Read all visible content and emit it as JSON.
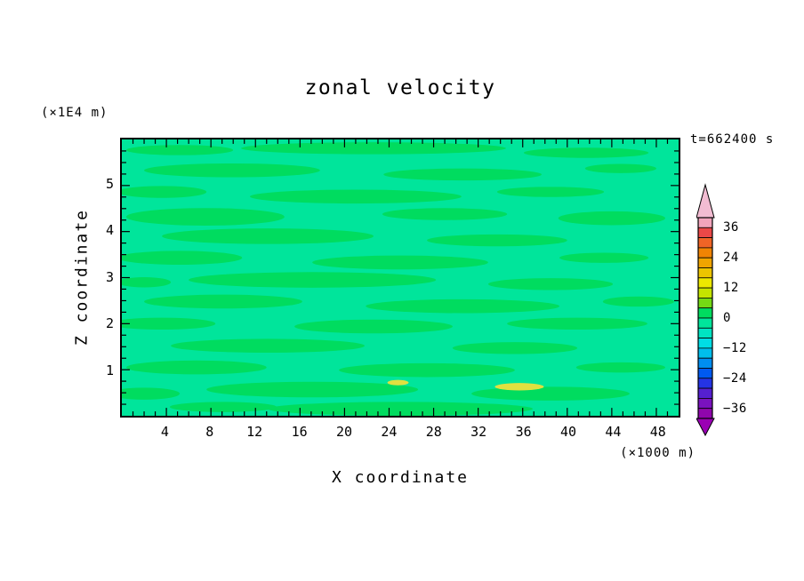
{
  "title": "zonal velocity",
  "time_label": "t=662400 s",
  "axes": {
    "x_label": "X coordinate",
    "x_unit": "(×1000 m)",
    "y_label": "Z coordinate",
    "y_unit": "(×1E4 m)"
  },
  "chart_data": {
    "type": "heatmap",
    "subtype": "filled-contour",
    "title": "zonal velocity",
    "annotation": "t=662400 s",
    "xlabel": "X coordinate",
    "x_unit": "×1000 m",
    "ylabel": "Z coordinate",
    "y_unit": "×1E4 m",
    "xlim": [
      0,
      50
    ],
    "zlim": [
      0,
      6
    ],
    "x_major_ticks": [
      4,
      8,
      12,
      16,
      20,
      24,
      28,
      32,
      36,
      40,
      44,
      48
    ],
    "x_minor_step": 1,
    "z_major_ticks": [
      1,
      2,
      3,
      4,
      5
    ],
    "z_minor_step": 0.25,
    "grid": false,
    "field_summary": "Zonal velocity field is near zero everywhere: a background in the -4..0 band with numerous elongated horizontal streaks in the 0..4 band, plus two small patches near 8..12 close to z≈0.6-0.7.",
    "background_color": "#00E59B",
    "band_color": "#00DC5F",
    "spot_color": "#E0E040",
    "bands_format": "[x, z, rx, rz] in data units (ellipse center and radii)",
    "bands": [
      [
        5.2,
        5.77,
        4.8,
        0.11
      ],
      [
        22.6,
        5.81,
        11.9,
        0.13
      ],
      [
        41.7,
        5.71,
        5.6,
        0.11
      ],
      [
        9.9,
        5.33,
        7.9,
        0.15
      ],
      [
        30.6,
        5.24,
        7.1,
        0.13
      ],
      [
        44.8,
        5.37,
        3.2,
        0.1
      ],
      [
        3.6,
        4.86,
        4.0,
        0.13
      ],
      [
        21.0,
        4.76,
        9.5,
        0.15
      ],
      [
        38.5,
        4.86,
        4.8,
        0.11
      ],
      [
        7.5,
        4.32,
        7.1,
        0.19
      ],
      [
        29.0,
        4.38,
        5.6,
        0.13
      ],
      [
        44.0,
        4.29,
        4.8,
        0.15
      ],
      [
        13.1,
        3.9,
        9.5,
        0.17
      ],
      [
        33.7,
        3.81,
        6.3,
        0.13
      ],
      [
        5.2,
        3.43,
        5.6,
        0.15
      ],
      [
        25.0,
        3.33,
        7.9,
        0.15
      ],
      [
        43.3,
        3.43,
        4.0,
        0.11
      ],
      [
        17.1,
        2.95,
        11.1,
        0.17
      ],
      [
        38.5,
        2.86,
        5.6,
        0.13
      ],
      [
        2.0,
        2.9,
        2.4,
        0.11
      ],
      [
        9.1,
        2.48,
        7.1,
        0.15
      ],
      [
        30.6,
        2.38,
        8.7,
        0.15
      ],
      [
        46.4,
        2.48,
        3.2,
        0.11
      ],
      [
        3.6,
        2.0,
        4.8,
        0.13
      ],
      [
        22.6,
        1.94,
        7.1,
        0.15
      ],
      [
        40.9,
        2.0,
        6.3,
        0.13
      ],
      [
        13.1,
        1.52,
        8.7,
        0.15
      ],
      [
        35.3,
        1.47,
        5.6,
        0.13
      ],
      [
        6.7,
        1.05,
        6.3,
        0.15
      ],
      [
        27.4,
        0.99,
        7.9,
        0.15
      ],
      [
        44.8,
        1.05,
        4.0,
        0.11
      ],
      [
        17.1,
        0.57,
        9.5,
        0.17
      ],
      [
        38.5,
        0.48,
        7.1,
        0.15
      ],
      [
        2.0,
        0.48,
        3.2,
        0.13
      ],
      [
        25.0,
        0.15,
        11.9,
        0.15
      ],
      [
        9.1,
        0.19,
        4.8,
        0.11
      ]
    ],
    "spots": [
      [
        24.8,
        0.72,
        0.95,
        0.06
      ],
      [
        35.7,
        0.63,
        2.2,
        0.08
      ]
    ],
    "colorbar": {
      "orientation": "vertical",
      "position": "right",
      "top_value": 40,
      "bottom_value": -40,
      "level_step": 4,
      "labels": [
        "36",
        "24",
        "12",
        "0",
        "−12",
        "−24",
        "−36"
      ],
      "label_values": [
        36,
        24,
        12,
        0,
        -12,
        -24,
        -36
      ],
      "segment_colors_top_to_bottom": [
        "#F2A4BC",
        "#EA4848",
        "#F06426",
        "#F08404",
        "#F0A400",
        "#ECC400",
        "#ECE800",
        "#C4E400",
        "#74D914",
        "#00DC5F",
        "#00E59B",
        "#00E4C2",
        "#00DDE4",
        "#00BEEC",
        "#008EF0",
        "#005AF0",
        "#2534E4",
        "#5520D0",
        "#7A12BE",
        "#8F06AC"
      ],
      "top_arrow_color": "#F2BCD2",
      "bottom_arrow_color": "#9A00B4"
    }
  }
}
